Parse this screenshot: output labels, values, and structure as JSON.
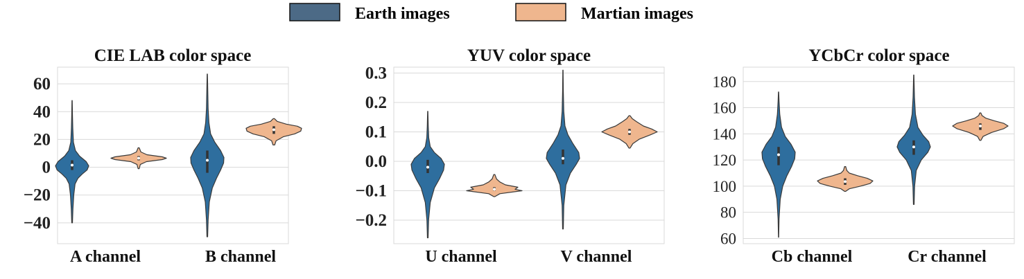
{
  "legend": [
    {
      "label": "Earth images",
      "color": "#2e6e9e"
    },
    {
      "label": "Martian images",
      "color": "#efb68e"
    }
  ],
  "colors": {
    "earth": "#2e6e9e",
    "earth_legend": "#4c6a86",
    "mars": "#efb68e",
    "edge": "#3a3a3a",
    "grid": "#d9d9d9"
  },
  "chart_data": [
    {
      "type": "violin",
      "title": "CIE LAB color space",
      "categories": [
        "A channel",
        "B channel"
      ],
      "ylim": [
        -55,
        72
      ],
      "yticks": [
        -40,
        -20,
        0,
        20,
        40,
        60
      ],
      "tick_labels": [
        "−40",
        "−20",
        "0",
        "20",
        "40",
        "60"
      ],
      "tick_style": "bold",
      "series": [
        {
          "name": "Earth images",
          "violins": [
            {
              "category": "A channel",
              "min": -40,
              "max": 48,
              "median": 1.5,
              "q1": -2,
              "q3": 5,
              "profile": [
                [
                  -40,
                  0.02
                ],
                [
                  -30,
                  0.05
                ],
                [
                  -20,
                  0.1
                ],
                [
                  -12,
                  0.18
                ],
                [
                  -8,
                  0.35
                ],
                [
                  -5,
                  0.6
                ],
                [
                  -2,
                  0.9
                ],
                [
                  1,
                  1
                ],
                [
                  4,
                  0.85
                ],
                [
                  8,
                  0.45
                ],
                [
                  12,
                  0.2
                ],
                [
                  18,
                  0.08
                ],
                [
                  28,
                  0.04
                ],
                [
                  38,
                  0.02
                ],
                [
                  48,
                  0.01
                ]
              ]
            },
            {
              "category": "B channel",
              "min": -50,
              "max": 67,
              "median": 5,
              "q1": -4,
              "q3": 12,
              "profile": [
                [
                  -50,
                  0.02
                ],
                [
                  -38,
                  0.05
                ],
                [
                  -25,
                  0.12
                ],
                [
                  -15,
                  0.3
                ],
                [
                  -8,
                  0.55
                ],
                [
                  -2,
                  0.8
                ],
                [
                  3,
                  0.98
                ],
                [
                  7,
                  1
                ],
                [
                  12,
                  0.8
                ],
                [
                  18,
                  0.45
                ],
                [
                  24,
                  0.2
                ],
                [
                  32,
                  0.1
                ],
                [
                  42,
                  0.05
                ],
                [
                  55,
                  0.03
                ],
                [
                  67,
                  0.01
                ]
              ]
            }
          ]
        },
        {
          "name": "Martian images",
          "violins": [
            {
              "category": "A channel",
              "min": -1,
              "max": 14,
              "median": 6.5,
              "q1": 5,
              "q3": 8,
              "profile": [
                [
                  -1,
                  0.02
                ],
                [
                  2,
                  0.06
                ],
                [
                  4,
                  0.28
                ],
                [
                  5.5,
                  0.85
                ],
                [
                  6.5,
                  1
                ],
                [
                  7.5,
                  0.85
                ],
                [
                  9,
                  0.3
                ],
                [
                  11,
                  0.08
                ],
                [
                  14,
                  0.02
                ]
              ]
            },
            {
              "category": "B channel",
              "min": 16,
              "max": 35,
              "median": 27,
              "q1": 24,
              "q3": 29.5,
              "profile": [
                [
                  16,
                  0.03
                ],
                [
                  19,
                  0.08
                ],
                [
                  22,
                  0.35
                ],
                [
                  24,
                  0.75
                ],
                [
                  26,
                  0.97
                ],
                [
                  28,
                  1
                ],
                [
                  29.5,
                  0.85
                ],
                [
                  31,
                  0.45
                ],
                [
                  33,
                  0.12
                ],
                [
                  35,
                  0.02
                ]
              ]
            }
          ]
        }
      ]
    },
    {
      "type": "violin",
      "title": "YUV color space",
      "categories": [
        "U channel",
        "V channel"
      ],
      "ylim": [
        -0.28,
        0.32
      ],
      "yticks": [
        -0.2,
        -0.1,
        0.0,
        0.1,
        0.2,
        0.3
      ],
      "tick_labels": [
        "−0.2",
        "−0.1",
        "0.0",
        "0.1",
        "0.2",
        "0.3"
      ],
      "tick_style": "bold",
      "series": [
        {
          "name": "Earth images",
          "violins": [
            {
              "category": "U channel",
              "min": -0.26,
              "max": 0.17,
              "median": -0.02,
              "q1": -0.04,
              "q3": 0.005,
              "profile": [
                [
                  -0.26,
                  0.02
                ],
                [
                  -0.2,
                  0.05
                ],
                [
                  -0.14,
                  0.15
                ],
                [
                  -0.09,
                  0.4
                ],
                [
                  -0.06,
                  0.7
                ],
                [
                  -0.03,
                  0.95
                ],
                [
                  -0.01,
                  1
                ],
                [
                  0.01,
                  0.8
                ],
                [
                  0.03,
                  0.4
                ],
                [
                  0.05,
                  0.15
                ],
                [
                  0.08,
                  0.06
                ],
                [
                  0.12,
                  0.03
                ],
                [
                  0.17,
                  0.01
                ]
              ]
            },
            {
              "category": "V channel",
              "min": -0.23,
              "max": 0.31,
              "median": 0.01,
              "q1": -0.01,
              "q3": 0.04,
              "profile": [
                [
                  -0.23,
                  0.02
                ],
                [
                  -0.15,
                  0.05
                ],
                [
                  -0.08,
                  0.18
                ],
                [
                  -0.04,
                  0.45
                ],
                [
                  -0.01,
                  0.8
                ],
                [
                  0.01,
                  1
                ],
                [
                  0.03,
                  0.95
                ],
                [
                  0.06,
                  0.6
                ],
                [
                  0.09,
                  0.3
                ],
                [
                  0.12,
                  0.12
                ],
                [
                  0.17,
                  0.05
                ],
                [
                  0.24,
                  0.02
                ],
                [
                  0.31,
                  0.01
                ]
              ]
            }
          ]
        },
        {
          "name": "Martian images",
          "violins": [
            {
              "category": "U channel",
              "min": -0.12,
              "max": -0.045,
              "median": -0.095,
              "q1": -0.1,
              "q3": -0.088,
              "profile": [
                [
                  -0.12,
                  0.02
                ],
                [
                  -0.11,
                  0.2
                ],
                [
                  -0.1,
                  1
                ],
                [
                  -0.095,
                  0.75
                ],
                [
                  -0.088,
                  0.85
                ],
                [
                  -0.08,
                  0.4
                ],
                [
                  -0.07,
                  0.2
                ],
                [
                  -0.06,
                  0.08
                ],
                [
                  -0.045,
                  0.02
                ]
              ]
            },
            {
              "category": "V channel",
              "min": 0.045,
              "max": 0.155,
              "median": 0.1,
              "q1": 0.09,
              "q3": 0.11,
              "profile": [
                [
                  0.045,
                  0.02
                ],
                [
                  0.06,
                  0.12
                ],
                [
                  0.075,
                  0.35
                ],
                [
                  0.09,
                  0.75
                ],
                [
                  0.1,
                  1
                ],
                [
                  0.11,
                  0.8
                ],
                [
                  0.12,
                  0.5
                ],
                [
                  0.135,
                  0.25
                ],
                [
                  0.145,
                  0.1
                ],
                [
                  0.155,
                  0.02
                ]
              ]
            }
          ]
        }
      ]
    },
    {
      "type": "violin",
      "title": "YCbCr color space",
      "categories": [
        "Cb channel",
        "Cr channel"
      ],
      "ylim": [
        56,
        191
      ],
      "yticks": [
        60,
        80,
        100,
        120,
        140,
        160,
        180
      ],
      "tick_labels": [
        "60",
        "80",
        "100",
        "120",
        "140",
        "160",
        "180"
      ],
      "tick_style": "normal",
      "series": [
        {
          "name": "Earth images",
          "violins": [
            {
              "category": "Cb channel",
              "min": 61,
              "max": 172,
              "median": 124,
              "q1": 116,
              "q3": 130,
              "profile": [
                [
                  61,
                  0.01
                ],
                [
                  75,
                  0.03
                ],
                [
                  90,
                  0.1
                ],
                [
                  100,
                  0.25
                ],
                [
                  108,
                  0.5
                ],
                [
                  115,
                  0.78
                ],
                [
                  121,
                  0.97
                ],
                [
                  126,
                  1
                ],
                [
                  132,
                  0.75
                ],
                [
                  138,
                  0.4
                ],
                [
                  145,
                  0.18
                ],
                [
                  155,
                  0.07
                ],
                [
                  165,
                  0.03
                ],
                [
                  172,
                  0.01
                ]
              ]
            },
            {
              "category": "Cr channel",
              "min": 86,
              "max": 185,
              "median": 130,
              "q1": 124,
              "q3": 135,
              "profile": [
                [
                  86,
                  0.02
                ],
                [
                  100,
                  0.05
                ],
                [
                  112,
                  0.15
                ],
                [
                  120,
                  0.45
                ],
                [
                  126,
                  0.85
                ],
                [
                  130,
                  1
                ],
                [
                  134,
                  0.9
                ],
                [
                  139,
                  0.55
                ],
                [
                  145,
                  0.25
                ],
                [
                  155,
                  0.1
                ],
                [
                  168,
                  0.04
                ],
                [
                  185,
                  0.01
                ]
              ]
            }
          ]
        },
        {
          "name": "Martian images",
          "violins": [
            {
              "category": "Cb channel",
              "min": 96,
              "max": 115,
              "median": 103.5,
              "q1": 101,
              "q3": 106,
              "profile": [
                [
                  96,
                  0.02
                ],
                [
                  98,
                  0.15
                ],
                [
                  100,
                  0.55
                ],
                [
                  102,
                  0.9
                ],
                [
                  104,
                  1
                ],
                [
                  106,
                  0.8
                ],
                [
                  108,
                  0.45
                ],
                [
                  110,
                  0.15
                ],
                [
                  112,
                  0.06
                ],
                [
                  115,
                  0.02
                ]
              ]
            },
            {
              "category": "Cr channel",
              "min": 135,
              "max": 156,
              "median": 146,
              "q1": 143,
              "q3": 148,
              "profile": [
                [
                  135,
                  0.02
                ],
                [
                  138,
                  0.1
                ],
                [
                  141,
                  0.4
                ],
                [
                  144,
                  0.85
                ],
                [
                  146,
                  1
                ],
                [
                  148,
                  0.85
                ],
                [
                  150,
                  0.5
                ],
                [
                  152,
                  0.2
                ],
                [
                  154,
                  0.06
                ],
                [
                  156,
                  0.02
                ]
              ]
            }
          ]
        }
      ]
    }
  ]
}
